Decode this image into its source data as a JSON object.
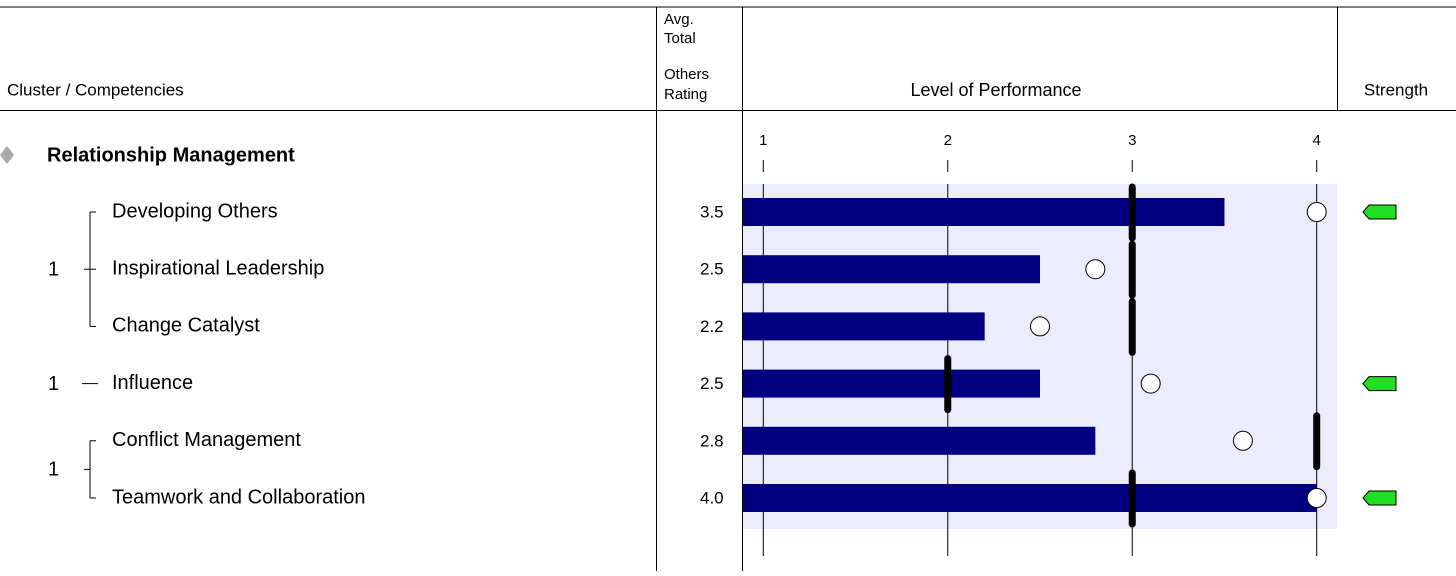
{
  "header": {
    "cluster": "Cluster / Competencies",
    "rating": [
      "Avg.",
      "Total",
      "Others",
      "Rating"
    ],
    "performance": "Level of Performance",
    "strength": "Strength"
  },
  "scale": {
    "xlim": [
      0.89,
      4.11
    ],
    "xticks": [
      1,
      2,
      3,
      4
    ]
  },
  "cluster": "Relationship Management",
  "groups": [
    {
      "label": "1",
      "rows": [
        0,
        1,
        2
      ]
    },
    {
      "label": "1",
      "rows": [
        3
      ]
    },
    {
      "label": "1",
      "rows": [
        4,
        5
      ]
    }
  ],
  "rows": [
    {
      "name": "Developing Others",
      "rating": 3.5,
      "rating_label": "3.5",
      "marker": 3,
      "circle": 4.0,
      "strength": true
    },
    {
      "name": "Inspirational Leadership",
      "rating": 2.5,
      "rating_label": "2.5",
      "marker": 3,
      "circle": 2.8,
      "strength": false
    },
    {
      "name": "Change Catalyst",
      "rating": 2.2,
      "rating_label": "2.2",
      "marker": 3,
      "circle": 2.5,
      "strength": false
    },
    {
      "name": "Influence",
      "rating": 2.5,
      "rating_label": "2.5",
      "marker": 2,
      "circle": 3.1,
      "strength": true
    },
    {
      "name": "Conflict Management",
      "rating": 2.8,
      "rating_label": "2.8",
      "marker": 4,
      "circle": 3.6,
      "strength": false
    },
    {
      "name": "Teamwork and Collaboration",
      "rating": 4.0,
      "rating_label": "4.0",
      "marker": 3,
      "circle": 4.0,
      "strength": true
    }
  ]
}
